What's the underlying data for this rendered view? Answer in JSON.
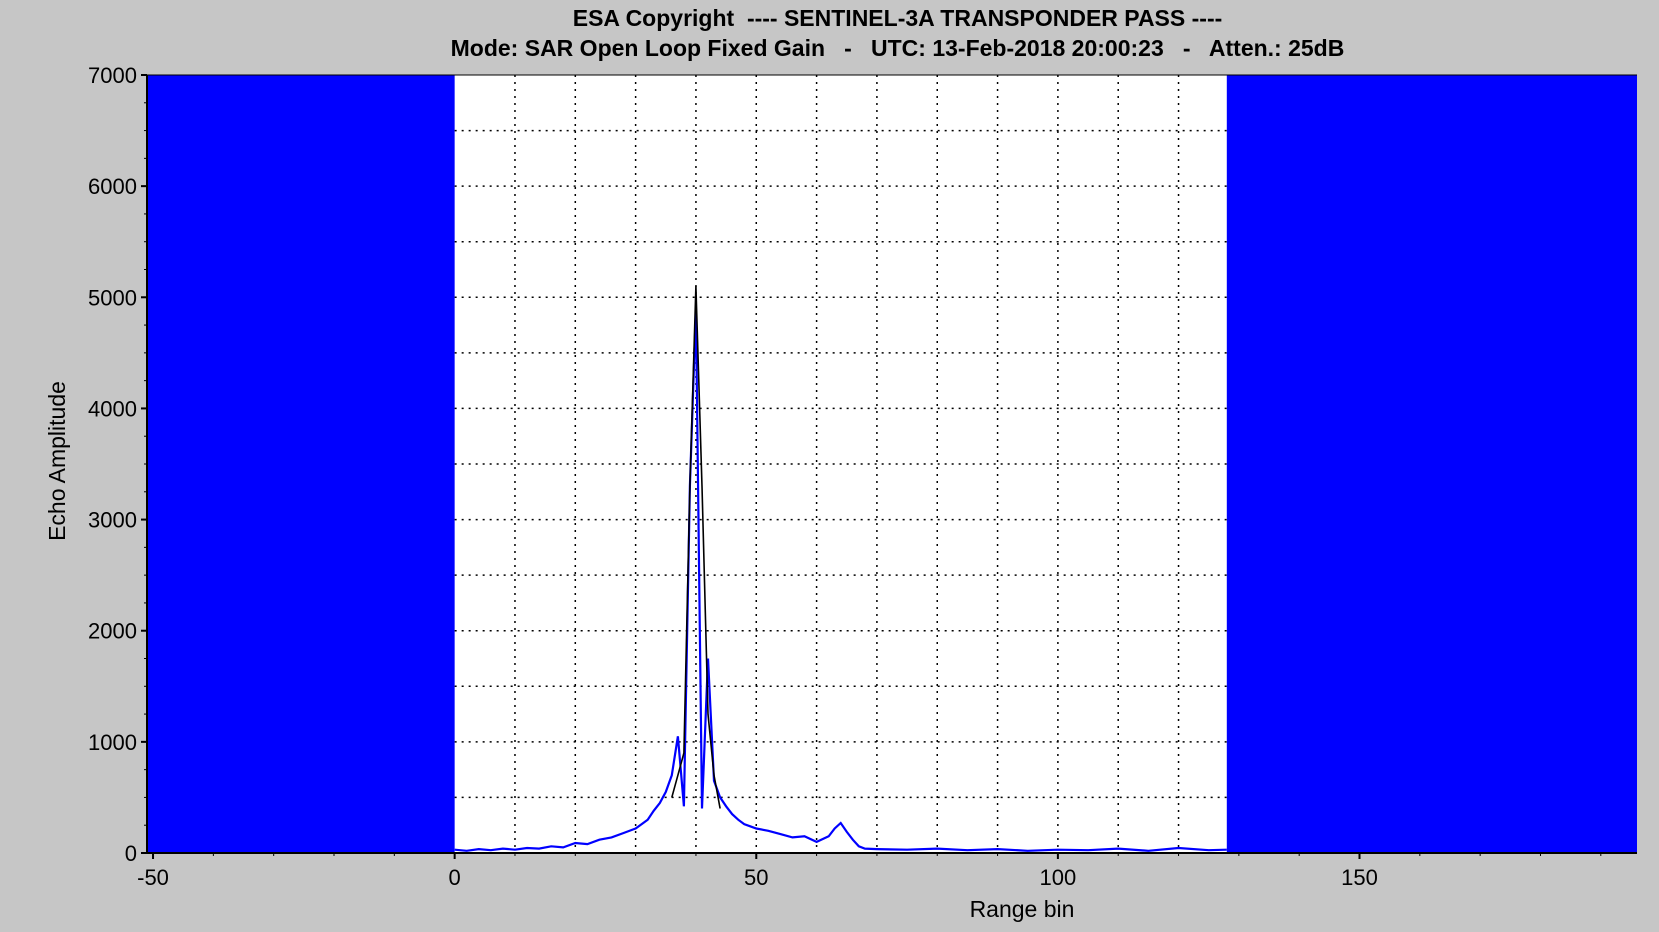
{
  "chart_data": {
    "type": "line",
    "title": "ESA Copyright  ---- SENTINEL-3A TRANSPONDER PASS ----",
    "subtitle": "Mode: SAR Open Loop Fixed Gain   -   UTC: 13-Feb-2018 20:00:23   -   Atten.: 25dB",
    "xlabel": "Range bin",
    "ylabel": "Echo Amplitude",
    "xlim": [
      -51,
      196
    ],
    "ylim": [
      0,
      7000
    ],
    "xticks": [
      -50,
      0,
      50,
      100,
      150
    ],
    "yticks": [
      0,
      1000,
      2000,
      3000,
      4000,
      5000,
      6000,
      7000
    ],
    "grid": true,
    "grid_style": "dotted",
    "valid_window": [
      0,
      128
    ],
    "masked_fill_color": "#0000ff",
    "plot_background": "#ffffff",
    "series": [
      {
        "color": "#0000ff",
        "x": [
          0,
          2,
          4,
          6,
          8,
          10,
          12,
          14,
          16,
          18,
          20,
          22,
          24,
          26,
          28,
          30,
          31,
          32,
          33,
          34,
          35,
          36,
          37,
          38,
          39,
          40,
          41,
          42,
          43,
          44,
          45,
          46,
          47,
          48,
          49,
          50,
          52,
          54,
          56,
          58,
          60,
          62,
          63,
          64,
          65,
          66,
          67,
          68,
          70,
          75,
          80,
          85,
          90,
          95,
          100,
          105,
          110,
          115,
          120,
          125,
          128
        ],
        "y": [
          30,
          20,
          35,
          25,
          40,
          30,
          45,
          40,
          60,
          50,
          90,
          80,
          120,
          140,
          180,
          220,
          260,
          300,
          380,
          450,
          550,
          700,
          1050,
          420,
          3300,
          4900,
          400,
          1750,
          650,
          500,
          420,
          350,
          300,
          260,
          240,
          220,
          200,
          170,
          140,
          150,
          100,
          150,
          220,
          270,
          190,
          120,
          60,
          40,
          35,
          30,
          40,
          25,
          35,
          20,
          30,
          25,
          40,
          20,
          45,
          25,
          30
        ]
      },
      {
        "color": "#000000",
        "x": [
          36,
          37,
          38,
          39,
          40,
          41,
          42,
          43,
          44
        ],
        "y": [
          500,
          700,
          900,
          3300,
          5100,
          3300,
          1250,
          700,
          400
        ]
      }
    ]
  }
}
